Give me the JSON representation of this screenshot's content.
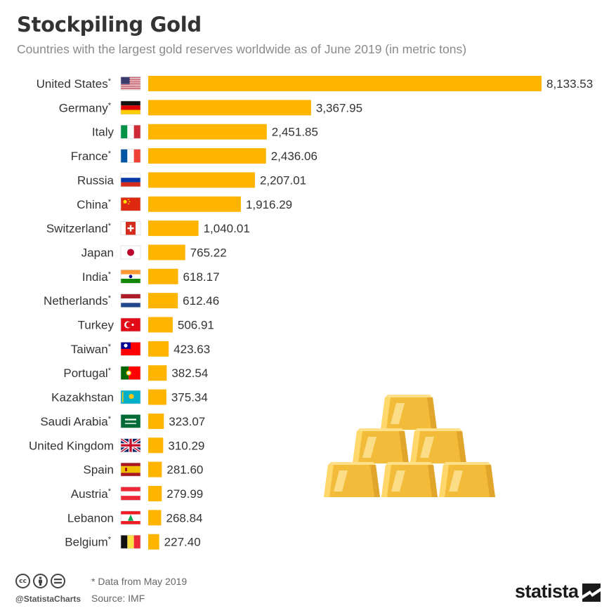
{
  "header": {
    "title": "Stockpiling Gold",
    "subtitle": "Countries with the largest gold reserves worldwide as of June 2019 (in metric tons)"
  },
  "chart_data": {
    "type": "bar",
    "orientation": "horizontal",
    "title": "Stockpiling Gold",
    "subtitle": "Countries with the largest gold reserves worldwide as of June 2019 (in metric tons)",
    "categories": [
      "United States*",
      "Germany*",
      "Italy",
      "France*",
      "Russia",
      "China*",
      "Switzerland*",
      "Japan",
      "India*",
      "Netherlands*",
      "Turkey",
      "Taiwan*",
      "Portugal*",
      "Kazakhstan",
      "Saudi Arabia*",
      "United Kingdom",
      "Spain",
      "Austria*",
      "Lebanon",
      "Belgium*"
    ],
    "values": [
      8133.53,
      3367.95,
      2451.85,
      2436.06,
      2207.01,
      1916.29,
      1040.01,
      765.22,
      618.17,
      612.46,
      506.91,
      423.63,
      382.54,
      375.34,
      323.07,
      310.29,
      281.6,
      279.99,
      268.84,
      227.4
    ],
    "value_labels": [
      "8,133.53",
      "3,367.95",
      "2,451.85",
      "2,436.06",
      "2,207.01",
      "1,916.29",
      "1,040.01",
      "765.22",
      "618.17",
      "612.46",
      "506.91",
      "423.63",
      "382.54",
      "375.34",
      "323.07",
      "310.29",
      "281.60",
      "279.99",
      "268.84",
      "227.40"
    ],
    "flags": [
      "us",
      "de",
      "it",
      "fr",
      "ru",
      "cn",
      "ch",
      "jp",
      "in",
      "nl",
      "tr",
      "tw",
      "pt",
      "kz",
      "sa",
      "gb",
      "es",
      "at",
      "lb",
      "be"
    ],
    "bar_color": "#FFB400",
    "xlim": [
      0,
      8133.53
    ],
    "grid": false,
    "legend": "none"
  },
  "footer": {
    "note": "* Data from May 2019",
    "source": "Source: IMF",
    "handle": "@StatistaCharts",
    "brand": "statista",
    "license_icons": [
      "cc",
      "by",
      "nd"
    ]
  }
}
